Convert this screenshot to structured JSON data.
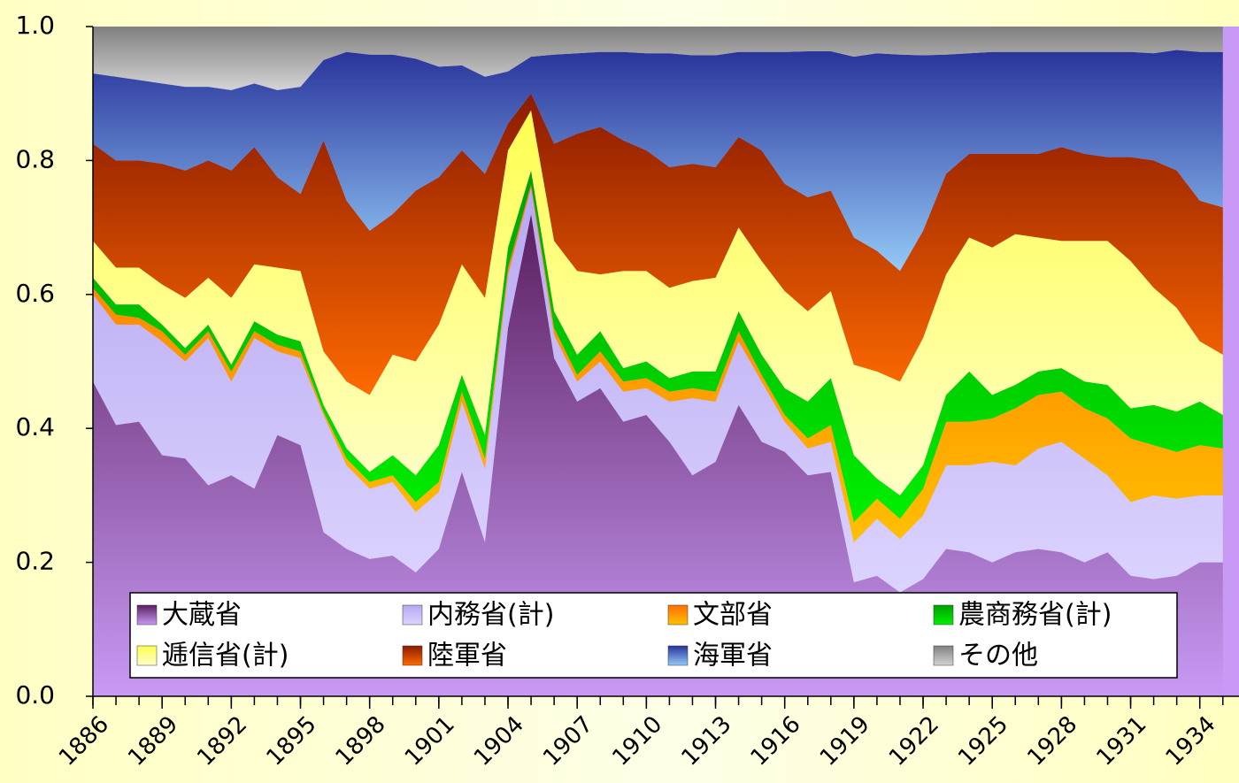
{
  "chart_data": {
    "type": "stacked_area",
    "x": [
      1886,
      1887,
      1888,
      1889,
      1890,
      1891,
      1892,
      1893,
      1894,
      1895,
      1896,
      1897,
      1898,
      1899,
      1900,
      1901,
      1902,
      1903,
      1904,
      1905,
      1906,
      1907,
      1908,
      1909,
      1910,
      1911,
      1912,
      1913,
      1914,
      1915,
      1916,
      1917,
      1918,
      1919,
      1920,
      1921,
      1922,
      1923,
      1924,
      1925,
      1926,
      1927,
      1928,
      1929,
      1930,
      1931,
      1932,
      1933,
      1934,
      1935
    ],
    "xlim": [
      1886,
      1935.7
    ],
    "xticks": [
      1886,
      1889,
      1892,
      1895,
      1898,
      1901,
      1904,
      1907,
      1910,
      1913,
      1916,
      1919,
      1922,
      1925,
      1928,
      1931,
      1934
    ],
    "ylim": [
      0,
      1
    ],
    "yticks": [
      {
        "value": 0,
        "label": "0.0"
      },
      {
        "value": 0.2,
        "label": "0.2"
      },
      {
        "value": 0.4,
        "label": "0.4"
      },
      {
        "value": 0.6,
        "label": "0.6"
      },
      {
        "value": 0.8,
        "label": "0.8"
      },
      {
        "value": 1,
        "label": "1.0"
      }
    ],
    "series": [
      {
        "name": "大蔵省",
        "color": [
          "#5a1e5e",
          "#c89af5"
        ],
        "values": [
          0.47,
          0.405,
          0.41,
          0.36,
          0.355,
          0.315,
          0.33,
          0.31,
          0.39,
          0.375,
          0.245,
          0.22,
          0.205,
          0.21,
          0.185,
          0.22,
          0.335,
          0.23,
          0.55,
          0.72,
          0.505,
          0.44,
          0.46,
          0.41,
          0.42,
          0.38,
          0.33,
          0.35,
          0.435,
          0.38,
          0.365,
          0.33,
          0.335,
          0.17,
          0.18,
          0.155,
          0.175,
          0.22,
          0.215,
          0.2,
          0.215,
          0.22,
          0.215,
          0.2,
          0.215,
          0.18,
          0.175,
          0.18,
          0.2,
          0.2
        ]
      },
      {
        "name": "内務省(計)",
        "color": [
          "#b8a8f0",
          "#dcd4ff"
        ],
        "values": [
          0.13,
          0.15,
          0.145,
          0.17,
          0.145,
          0.22,
          0.14,
          0.225,
          0.125,
          0.13,
          0.175,
          0.125,
          0.105,
          0.11,
          0.09,
          0.085,
          0.105,
          0.11,
          0.08,
          0.04,
          0.035,
          0.03,
          0.04,
          0.045,
          0.04,
          0.06,
          0.115,
          0.09,
          0.095,
          0.09,
          0.045,
          0.04,
          0.045,
          0.06,
          0.085,
          0.08,
          0.095,
          0.125,
          0.13,
          0.15,
          0.13,
          0.15,
          0.165,
          0.155,
          0.115,
          0.11,
          0.125,
          0.115,
          0.1,
          0.1
        ]
      },
      {
        "name": "文部省",
        "color": [
          "#ff7000",
          "#ffc000"
        ],
        "values": [
          0.01,
          0.015,
          0.01,
          0.015,
          0.01,
          0.01,
          0.015,
          0.01,
          0.01,
          0.01,
          0.005,
          0.01,
          0.01,
          0.01,
          0.015,
          0.015,
          0.015,
          0.015,
          0.01,
          0.005,
          0.01,
          0.01,
          0.015,
          0.015,
          0.015,
          0.015,
          0.015,
          0.015,
          0.015,
          0.01,
          0.01,
          0.015,
          0.025,
          0.03,
          0.03,
          0.03,
          0.04,
          0.065,
          0.065,
          0.065,
          0.085,
          0.08,
          0.075,
          0.075,
          0.085,
          0.095,
          0.075,
          0.07,
          0.075,
          0.07
        ]
      },
      {
        "name": "農商務省(計)",
        "color": [
          "#00a000",
          "#00f000"
        ],
        "values": [
          0.015,
          0.015,
          0.02,
          0.01,
          0.01,
          0.01,
          0.01,
          0.015,
          0.015,
          0.015,
          0.01,
          0.015,
          0.015,
          0.03,
          0.04,
          0.055,
          0.025,
          0.035,
          0.03,
          0.02,
          0.025,
          0.03,
          0.03,
          0.02,
          0.025,
          0.02,
          0.025,
          0.03,
          0.03,
          0.03,
          0.04,
          0.055,
          0.07,
          0.1,
          0.03,
          0.035,
          0.035,
          0.04,
          0.075,
          0.035,
          0.035,
          0.035,
          0.035,
          0.04,
          0.05,
          0.045,
          0.06,
          0.06,
          0.065,
          0.05
        ]
      },
      {
        "name": "逓信省(計)",
        "color": [
          "#ffff50",
          "#ffffc8"
        ],
        "values": [
          0.055,
          0.055,
          0.055,
          0.06,
          0.075,
          0.07,
          0.1,
          0.085,
          0.1,
          0.105,
          0.08,
          0.1,
          0.115,
          0.15,
          0.17,
          0.18,
          0.165,
          0.205,
          0.145,
          0.09,
          0.105,
          0.125,
          0.085,
          0.145,
          0.135,
          0.135,
          0.135,
          0.14,
          0.125,
          0.14,
          0.145,
          0.135,
          0.13,
          0.135,
          0.16,
          0.17,
          0.19,
          0.18,
          0.2,
          0.22,
          0.225,
          0.2,
          0.19,
          0.21,
          0.215,
          0.22,
          0.175,
          0.155,
          0.09,
          0.09
        ]
      },
      {
        "name": "陸軍省",
        "color": [
          "#8b1a00",
          "#ff6a00"
        ],
        "values": [
          0.145,
          0.16,
          0.16,
          0.18,
          0.19,
          0.175,
          0.19,
          0.175,
          0.135,
          0.115,
          0.315,
          0.27,
          0.245,
          0.21,
          0.255,
          0.22,
          0.17,
          0.185,
          0.04,
          0.025,
          0.145,
          0.205,
          0.22,
          0.195,
          0.18,
          0.18,
          0.175,
          0.165,
          0.135,
          0.165,
          0.16,
          0.17,
          0.15,
          0.19,
          0.18,
          0.165,
          0.16,
          0.15,
          0.125,
          0.14,
          0.12,
          0.125,
          0.14,
          0.13,
          0.125,
          0.155,
          0.19,
          0.205,
          0.21,
          0.22
        ]
      },
      {
        "name": "海軍省",
        "color": [
          "#28339a",
          "#94caf8"
        ],
        "values": [
          0.105,
          0.125,
          0.12,
          0.12,
          0.125,
          0.11,
          0.12,
          0.095,
          0.13,
          0.16,
          0.12,
          0.222,
          0.263,
          0.238,
          0.197,
          0.165,
          0.127,
          0.145,
          0.078,
          0.055,
          0.133,
          0.12,
          0.112,
          0.132,
          0.145,
          0.17,
          0.162,
          0.167,
          0.127,
          0.147,
          0.197,
          0.218,
          0.208,
          0.27,
          0.295,
          0.323,
          0.262,
          0.178,
          0.15,
          0.152,
          0.152,
          0.152,
          0.142,
          0.152,
          0.157,
          0.157,
          0.16,
          0.18,
          0.222,
          0.232
        ]
      },
      {
        "name": "その他",
        "color": [
          "#808080",
          "#d4d4d4"
        ],
        "values": [
          0.07,
          0.075,
          0.08,
          0.085,
          0.09,
          0.09,
          0.095,
          0.085,
          0.095,
          0.09,
          0.05,
          0.038,
          0.042,
          0.042,
          0.048,
          0.06,
          0.058,
          0.075,
          0.067,
          0.045,
          0.042,
          0.04,
          0.038,
          0.038,
          0.04,
          0.04,
          0.043,
          0.043,
          0.038,
          0.038,
          0.038,
          0.037,
          0.037,
          0.045,
          0.04,
          0.042,
          0.043,
          0.042,
          0.04,
          0.038,
          0.038,
          0.038,
          0.038,
          0.038,
          0.038,
          0.038,
          0.04,
          0.035,
          0.038,
          0.038
        ]
      }
    ],
    "legend": "lower-center"
  }
}
